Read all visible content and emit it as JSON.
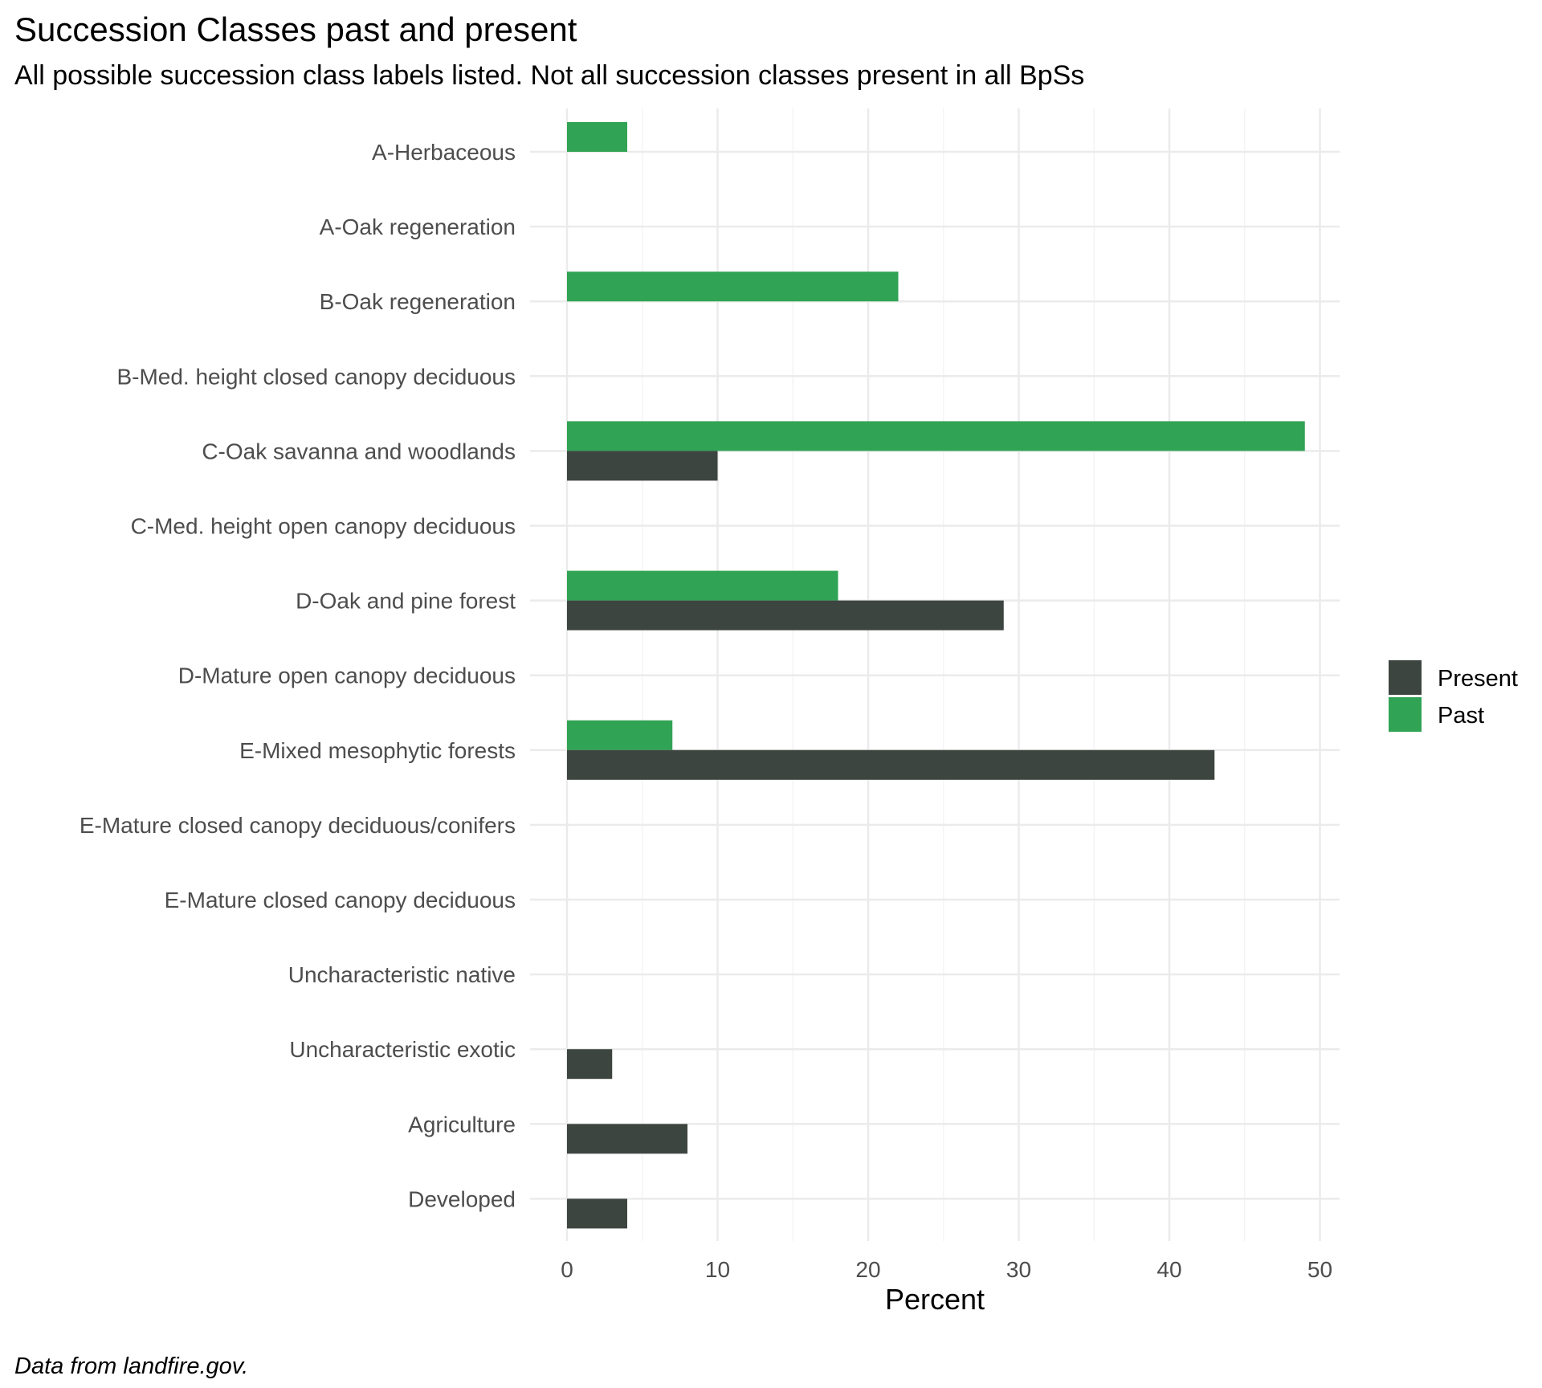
{
  "title": "Succession Classes past and present",
  "subtitle": "All possible succession class labels listed. Not all succession classes present in all BpSs",
  "caption": "Data from landfire.gov.",
  "colors": {
    "present": "#3d4540",
    "past": "#31a354",
    "grid_major": "#ebebeb",
    "grid_minor": "#f4f4f4",
    "axis_text": "#4d4d4d"
  },
  "chart_data": {
    "type": "bar",
    "orientation": "horizontal",
    "categories": [
      "A-Herbaceous",
      "A-Oak regeneration",
      "B-Oak regeneration",
      "B-Med. height closed canopy deciduous",
      "C-Oak savanna and woodlands",
      "C-Med. height open canopy deciduous",
      "D-Oak and pine forest",
      "D-Mature open canopy deciduous",
      "E-Mixed mesophytic forests",
      "E-Mature closed canopy deciduous/conifers",
      "E-Mature closed canopy deciduous",
      "Uncharacteristic native",
      "Uncharacteristic exotic",
      "Agriculture",
      "Developed"
    ],
    "series": [
      {
        "name": "Present",
        "values": [
          0,
          0,
          0,
          0,
          10,
          0,
          29,
          0,
          43,
          0,
          0,
          0,
          3,
          8,
          4
        ]
      },
      {
        "name": "Past",
        "values": [
          4,
          0,
          22,
          0,
          49,
          0,
          18,
          0,
          7,
          0,
          0,
          0,
          0,
          0,
          0
        ]
      }
    ],
    "xlabel": "Percent",
    "ylabel": "",
    "xlim": [
      0,
      51.5
    ],
    "xticks": [
      0,
      10,
      20,
      30,
      40,
      50
    ],
    "grid": true,
    "legend_position": "right",
    "legend": [
      "Present",
      "Past"
    ]
  }
}
